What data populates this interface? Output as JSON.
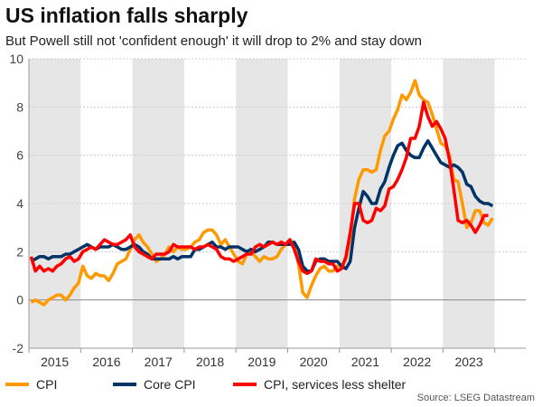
{
  "title": "US inflation falls sharply",
  "subtitle": "But Powell still not 'confident enough' it will drop to 2% and stay down",
  "source": "Source: LSEG Datastream",
  "chart_data": {
    "type": "line",
    "title": "US inflation falls sharply",
    "subtitle": "But Powell still not 'confident enough' it will drop to 2% and stay down",
    "xlabel": "",
    "ylabel": "",
    "ylim": [
      -2,
      10
    ],
    "yticks": [
      "-2",
      "0",
      "2",
      "4",
      "6",
      "8",
      "10"
    ],
    "xticks": [
      "2015",
      "2016",
      "2017",
      "2018",
      "2019",
      "2020",
      "2021",
      "2022",
      "2023"
    ],
    "x_start": "2015-01",
    "frequency": "monthly",
    "grid": true,
    "shaded_alternate_years": true,
    "legend": "bottom",
    "series": [
      {
        "name": "CPI",
        "color": "#ff9900",
        "values": [
          -0.1,
          0.0,
          -0.1,
          -0.2,
          0.0,
          0.1,
          0.2,
          0.2,
          0.0,
          0.2,
          0.5,
          0.7,
          1.4,
          1.0,
          0.9,
          1.1,
          1.0,
          1.0,
          0.8,
          1.1,
          1.5,
          1.6,
          1.7,
          2.1,
          2.5,
          2.7,
          2.4,
          2.2,
          1.9,
          1.6,
          1.7,
          1.9,
          2.2,
          2.0,
          2.2,
          2.1,
          2.1,
          2.2,
          2.4,
          2.5,
          2.8,
          2.9,
          2.9,
          2.7,
          2.3,
          2.5,
          2.2,
          1.9,
          1.6,
          1.5,
          1.9,
          2.0,
          1.8,
          1.6,
          1.8,
          1.7,
          1.7,
          1.8,
          2.1,
          2.3,
          2.5,
          2.3,
          1.5,
          0.3,
          0.1,
          0.6,
          1.0,
          1.3,
          1.4,
          1.2,
          1.2,
          1.4,
          1.4,
          1.7,
          2.6,
          4.2,
          5.0,
          5.4,
          5.4,
          5.3,
          5.4,
          6.2,
          6.8,
          7.0,
          7.5,
          7.9,
          8.5,
          8.3,
          8.6,
          9.1,
          8.5,
          8.3,
          8.2,
          7.7,
          7.1,
          6.5,
          6.4,
          6.0,
          5.0,
          4.9,
          4.0,
          3.0,
          3.2,
          3.7,
          3.7,
          3.2,
          3.1,
          3.4
        ]
      },
      {
        "name": "Core CPI",
        "color": "#003366",
        "values": [
          1.6,
          1.7,
          1.8,
          1.8,
          1.7,
          1.8,
          1.8,
          1.8,
          1.9,
          1.9,
          2.0,
          2.1,
          2.2,
          2.3,
          2.2,
          2.1,
          2.2,
          2.2,
          2.2,
          2.3,
          2.2,
          2.1,
          2.1,
          2.2,
          2.3,
          2.2,
          2.0,
          1.9,
          1.7,
          1.7,
          1.7,
          1.7,
          1.7,
          1.8,
          1.7,
          1.8,
          1.8,
          1.8,
          2.1,
          2.1,
          2.2,
          2.3,
          2.4,
          2.2,
          2.2,
          2.1,
          2.2,
          2.2,
          2.2,
          2.1,
          2.0,
          2.1,
          2.0,
          2.1,
          2.2,
          2.4,
          2.4,
          2.3,
          2.3,
          2.3,
          2.3,
          2.4,
          2.1,
          1.4,
          1.2,
          1.2,
          1.6,
          1.7,
          1.7,
          1.6,
          1.6,
          1.6,
          1.4,
          1.3,
          1.6,
          3.0,
          3.8,
          4.5,
          4.3,
          4.0,
          4.0,
          4.6,
          4.9,
          5.5,
          6.0,
          6.4,
          6.5,
          6.2,
          6.0,
          5.9,
          5.9,
          6.3,
          6.6,
          6.3,
          6.0,
          5.7,
          5.6,
          5.5,
          5.6,
          5.5,
          5.3,
          4.8,
          4.7,
          4.3,
          4.1,
          4.0,
          4.0,
          3.9
        ]
      },
      {
        "name": "CPI, services less shelter",
        "color": "#ff0000",
        "values": [
          1.8,
          1.2,
          1.4,
          1.2,
          1.3,
          1.2,
          1.4,
          1.5,
          1.7,
          1.8,
          1.6,
          1.7,
          2.0,
          2.1,
          2.2,
          2.1,
          2.3,
          2.5,
          2.4,
          2.3,
          2.3,
          2.4,
          2.5,
          2.7,
          2.2,
          2.0,
          1.9,
          1.8,
          1.7,
          1.9,
          1.9,
          1.9,
          2.0,
          2.3,
          2.2,
          2.2,
          2.2,
          2.2,
          2.1,
          2.2,
          2.2,
          2.3,
          2.2,
          2.1,
          1.8,
          1.7,
          1.7,
          1.6,
          1.7,
          1.8,
          1.9,
          1.9,
          2.2,
          2.3,
          2.2,
          2.3,
          2.4,
          2.3,
          2.4,
          2.3,
          2.5,
          2.1,
          1.6,
          1.2,
          1.1,
          1.2,
          1.7,
          1.6,
          1.6,
          1.5,
          1.5,
          1.2,
          1.3,
          1.8,
          2.8,
          4.0,
          4.0,
          3.3,
          3.2,
          3.3,
          3.8,
          3.7,
          3.9,
          4.6,
          4.7,
          5.0,
          5.4,
          5.9,
          6.7,
          6.7,
          7.2,
          8.2,
          7.6,
          7.2,
          7.4,
          7.1,
          6.7,
          5.8,
          4.6,
          3.3,
          3.2,
          3.3,
          3.1,
          2.8,
          3.1,
          3.5,
          3.5
        ]
      }
    ]
  }
}
